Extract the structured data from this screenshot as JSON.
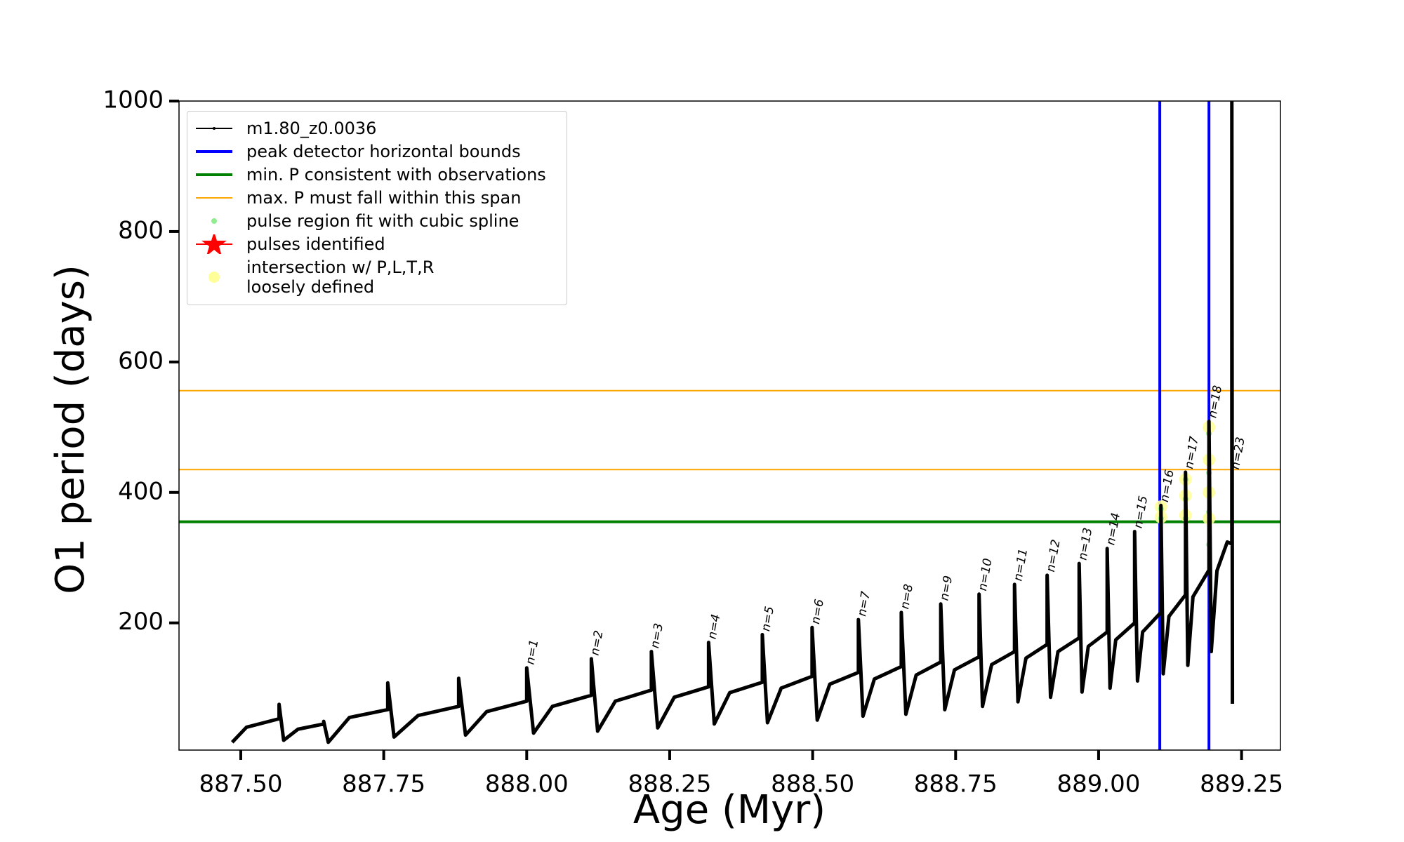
{
  "chart_data": {
    "type": "line",
    "xlabel": "Age (Myr)",
    "ylabel": "O1 period (days)",
    "xlim": [
      887.392,
      889.318
    ],
    "ylim": [
      5,
      1000
    ],
    "xticks": [
      {
        "value": 887.5,
        "label": "887.50"
      },
      {
        "value": 887.75,
        "label": "887.75"
      },
      {
        "value": 888.0,
        "label": "888.00"
      },
      {
        "value": 888.25,
        "label": "888.25"
      },
      {
        "value": 888.5,
        "label": "888.50"
      },
      {
        "value": 888.75,
        "label": "888.75"
      },
      {
        "value": 889.0,
        "label": "889.00"
      },
      {
        "value": 889.25,
        "label": "889.25"
      }
    ],
    "yticks": [
      200,
      400,
      600,
      800,
      1000
    ],
    "legend": "upper left",
    "series": [
      {
        "name": "m1.80_z0.0036",
        "color": "#000000",
        "x": [
          887.485,
          887.51,
          887.567,
          887.567,
          887.575,
          887.6,
          887.645,
          887.645,
          887.653,
          887.69,
          887.757,
          887.757,
          887.768,
          887.81,
          887.881,
          887.881,
          887.893,
          887.93,
          888.0,
          888.0,
          888.012,
          888.045,
          888.113,
          888.113,
          888.124,
          888.155,
          888.218,
          888.218,
          888.229,
          888.258,
          888.318,
          888.318,
          888.328,
          888.355,
          888.412,
          888.412,
          888.421,
          888.445,
          888.499,
          888.499,
          888.508,
          888.53,
          888.58,
          888.58,
          888.588,
          888.608,
          888.655,
          888.655,
          888.663,
          888.681,
          888.724,
          888.724,
          888.731,
          888.748,
          888.791,
          888.791,
          888.797,
          888.813,
          888.853,
          888.853,
          888.859,
          888.873,
          888.91,
          888.91,
          888.916,
          888.929,
          888.966,
          888.966,
          888.971,
          888.982,
          889.015,
          889.015,
          889.02,
          889.03,
          889.063,
          889.063,
          889.068,
          889.077,
          889.109,
          889.109,
          889.113,
          889.123,
          889.152,
          889.152,
          889.156,
          889.165,
          889.193,
          889.193,
          889.197,
          889.207,
          889.225,
          889.233,
          889.233,
          889.234
        ],
        "values": [
          17,
          40,
          53,
          75,
          20,
          37,
          45,
          49,
          17,
          55,
          67,
          108,
          25,
          58,
          72,
          115,
          28,
          64,
          80,
          131,
          31,
          72,
          89,
          145,
          34,
          80,
          97,
          156,
          39,
          86,
          102,
          170,
          45,
          93,
          109,
          182,
          47,
          100,
          118,
          193,
          51,
          106,
          124,
          205,
          57,
          114,
          133,
          216,
          60,
          120,
          140,
          229,
          67,
          128,
          148,
          244,
          72,
          136,
          156,
          259,
          79,
          146,
          167,
          273,
          86,
          156,
          177,
          291,
          94,
          164,
          186,
          314,
          100,
          174,
          200,
          340,
          111,
          186,
          216,
          380,
          122,
          210,
          243,
          431,
          135,
          240,
          281,
          509,
          156,
          280,
          324,
          321,
          1000,
          76
        ]
      },
      {
        "name": "peak detector horizontal bounds",
        "color": "#0000ff",
        "vlines": [
          889.107,
          889.193
        ]
      },
      {
        "name": "min. P consistent with observations",
        "color": "#008000",
        "hlines": [
          355
        ]
      },
      {
        "name": "max. P must fall within this span",
        "color": "#ffa500",
        "hlines": [
          435,
          556
        ]
      },
      {
        "name": "pulse region fit with cubic spline",
        "color": "#90ee90",
        "x": [
          889.109,
          889.109,
          889.152,
          889.152,
          889.152,
          889.193,
          889.193,
          889.193,
          889.193
        ],
        "values": [
          360,
          375,
          360,
          390,
          420,
          320,
          370,
          430,
          490
        ]
      },
      {
        "name": "pulses identified",
        "color": "#ff0000",
        "x": [],
        "values": []
      },
      {
        "name": "intersection w/ P,L,T,R\nloosely defined",
        "color": "#ffff99",
        "x": [
          889.109,
          889.109,
          889.152,
          889.152,
          889.152,
          889.193,
          889.193,
          889.193,
          889.193
        ],
        "values": [
          362,
          378,
          365,
          395,
          420,
          360,
          400,
          450,
          500
        ]
      }
    ],
    "annotations": [
      {
        "text": "n=1",
        "x": 888.0,
        "y": 131
      },
      {
        "text": "n=2",
        "x": 888.113,
        "y": 145
      },
      {
        "text": "n=3",
        "x": 888.218,
        "y": 156
      },
      {
        "text": "n=4",
        "x": 888.318,
        "y": 170
      },
      {
        "text": "n=5",
        "x": 888.412,
        "y": 182
      },
      {
        "text": "n=6",
        "x": 888.499,
        "y": 193
      },
      {
        "text": "n=7",
        "x": 888.58,
        "y": 205
      },
      {
        "text": "n=8",
        "x": 888.655,
        "y": 216
      },
      {
        "text": "n=9",
        "x": 888.724,
        "y": 229
      },
      {
        "text": "n=10",
        "x": 888.791,
        "y": 244
      },
      {
        "text": "n=11",
        "x": 888.853,
        "y": 259
      },
      {
        "text": "n=12",
        "x": 888.91,
        "y": 273
      },
      {
        "text": "n=13",
        "x": 888.966,
        "y": 291
      },
      {
        "text": "n=14",
        "x": 889.015,
        "y": 314
      },
      {
        "text": "n=15",
        "x": 889.063,
        "y": 340
      },
      {
        "text": "n=16",
        "x": 889.109,
        "y": 380
      },
      {
        "text": "n=17",
        "x": 889.152,
        "y": 431
      },
      {
        "text": "n=18",
        "x": 889.193,
        "y": 509
      },
      {
        "text": "n=23",
        "x": 889.233,
        "y": 430
      }
    ]
  }
}
